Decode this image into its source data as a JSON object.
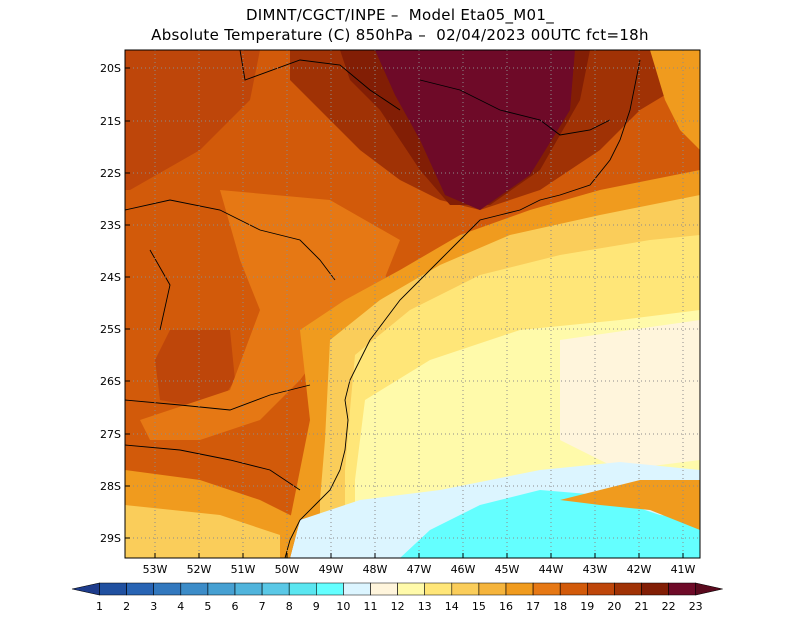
{
  "header": {
    "line1": "DIMNT/CGCT/INPE –  Model Eta05_M01_",
    "line2": "Absolute Temperature (C) 850hPa –  02/04/2023 00UTC fct=18h"
  },
  "map": {
    "lat_labels": [
      "20S",
      "21S",
      "22S",
      "23S",
      "24S",
      "25S",
      "26S",
      "27S",
      "28S",
      "29S"
    ],
    "lon_labels": [
      "53W",
      "52W",
      "51W",
      "50W",
      "49W",
      "48W",
      "47W",
      "46W",
      "45W",
      "44W",
      "43W",
      "42W",
      "41W"
    ]
  },
  "colorbar": {
    "labels": [
      "1",
      "2",
      "3",
      "4",
      "5",
      "6",
      "7",
      "8",
      "9",
      "10",
      "11",
      "12",
      "13",
      "14",
      "15",
      "16",
      "17",
      "18",
      "19",
      "20",
      "21",
      "22",
      "23"
    ],
    "colors": [
      "#1e3c8c",
      "#2050a0",
      "#2864b4",
      "#3278be",
      "#3c8cc8",
      "#46a0d2",
      "#50b4dc",
      "#5ac8e6",
      "#5ae6f0",
      "#64ffff",
      "#dcf5ff",
      "#fff5dc",
      "#fffaaa",
      "#ffe678",
      "#facd5a",
      "#f5b43c",
      "#f09b1e",
      "#e67814",
      "#d25a0a",
      "#be460a",
      "#a03205",
      "#821e05",
      "#6e0a28",
      "#5a0a1e"
    ]
  }
}
